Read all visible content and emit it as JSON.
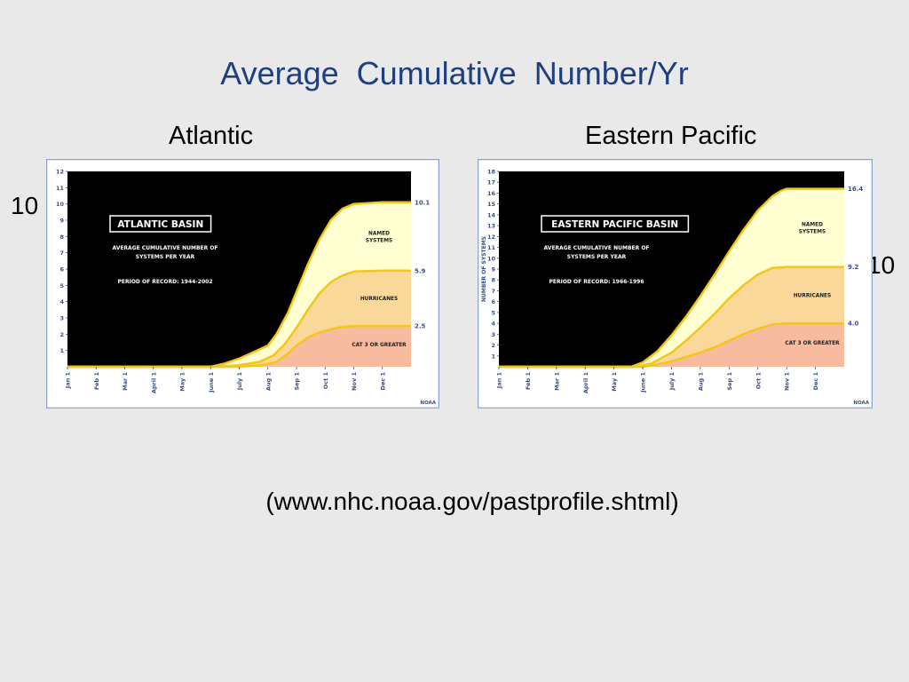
{
  "title": "Average Cumulative Number/Yr",
  "source": "(www.nhc.noaa.gov/pastprofile.shtml)",
  "side_notes": {
    "left": "10",
    "right": "10"
  },
  "colors": {
    "plot_bg": "#000000",
    "frame_bg": "#ffffff",
    "frame_border": "#8aa4d2",
    "axis_text": "#3a4f86",
    "named_fill": "#ffffd2",
    "hurricane_fill": "#fad89a",
    "major_fill": "#f7bca0",
    "curve_stroke": "#f4c61c",
    "panel_text": "#ffffff"
  },
  "chart_data": [
    {
      "type": "area",
      "heading": "Atlantic",
      "panel": {
        "basin_title": "ATLANTIC BASIN",
        "subtitle": [
          "AVERAGE CUMULATIVE NUMBER OF",
          "SYSTEMS PER YEAR"
        ],
        "period": "PERIOD OF RECORD: 1944-2002"
      },
      "ylabel": "",
      "ylim": [
        0,
        12
      ],
      "yticks": [
        "1",
        "2",
        "3",
        "4",
        "5",
        "6",
        "7",
        "8",
        "9",
        "10",
        "11",
        "12"
      ],
      "xlim": [
        0,
        12
      ],
      "month_labels": [
        "Jan 1",
        "Feb 1",
        "Mar 1",
        "April 1",
        "May 1",
        "June 1",
        "July 1",
        "Aug 1",
        "Sep 1",
        "Oct 1",
        "Nov 1",
        "Dec 1"
      ],
      "credit": "NOAA",
      "series": [
        {
          "name": "NAMED SYSTEMS",
          "name_lines": [
            "NAMED",
            "SYSTEMS"
          ],
          "end_label": "10.1",
          "x": [
            0,
            5.0,
            5.5,
            6.0,
            6.5,
            7.0,
            7.3,
            7.7,
            8.0,
            8.4,
            8.8,
            9.2,
            9.6,
            10.0,
            11.0,
            12.0
          ],
          "y": [
            0,
            0,
            0.2,
            0.5,
            0.9,
            1.3,
            2.0,
            3.3,
            4.6,
            6.3,
            7.8,
            9.0,
            9.7,
            10.0,
            10.1,
            10.1
          ]
        },
        {
          "name": "HURRICANES",
          "name_lines": [
            "HURRICANES"
          ],
          "end_label": "5.9",
          "x": [
            0,
            5.2,
            6.0,
            6.7,
            7.2,
            7.6,
            8.0,
            8.4,
            8.8,
            9.2,
            9.6,
            10.0,
            11.0,
            12.0
          ],
          "y": [
            0,
            0,
            0.1,
            0.3,
            0.7,
            1.4,
            2.4,
            3.5,
            4.5,
            5.2,
            5.6,
            5.85,
            5.9,
            5.9
          ]
        },
        {
          "name": "CAT 3 OR GREATER",
          "name_lines": [
            "CAT 3 OR GREATER"
          ],
          "end_label": "2.5",
          "x": [
            0,
            6.0,
            6.8,
            7.3,
            7.7,
            8.0,
            8.4,
            8.8,
            9.2,
            9.6,
            10.0,
            11.0,
            12.0
          ],
          "y": [
            0,
            0,
            0.1,
            0.3,
            0.8,
            1.3,
            1.8,
            2.1,
            2.3,
            2.45,
            2.5,
            2.5,
            2.5
          ]
        }
      ]
    },
    {
      "type": "area",
      "heading": "Eastern Pacific",
      "panel": {
        "basin_title": "EASTERN PACIFIC BASIN",
        "subtitle": [
          "AVERAGE CUMULATIVE NUMBER OF",
          "SYSTEMS PER YEAR"
        ],
        "period": "PERIOD OF RECORD: 1966-1996"
      },
      "ylabel": "NUMBER OF SYSTEMS",
      "ylim": [
        0,
        18
      ],
      "yticks": [
        "1",
        "2",
        "3",
        "4",
        "5",
        "6",
        "7",
        "8",
        "9",
        "10",
        "11",
        "12",
        "13",
        "14",
        "15",
        "16",
        "17",
        "18"
      ],
      "xlim": [
        0,
        12
      ],
      "month_labels": [
        "Jan 1",
        "Feb 1",
        "Mar 1",
        "April 1",
        "May 1",
        "June 1",
        "July 1",
        "Aug 1",
        "Sep 1",
        "Oct 1",
        "Nov 1",
        "Dec 1"
      ],
      "credit": "NOAA",
      "series": [
        {
          "name": "NAMED SYSTEMS",
          "name_lines": [
            "NAMED",
            "SYSTEMS"
          ],
          "end_label": "16.4",
          "x": [
            0,
            4.6,
            5.0,
            5.5,
            6.0,
            6.5,
            7.0,
            7.5,
            8.0,
            8.5,
            9.0,
            9.5,
            9.8,
            10.0,
            11.0,
            12.0
          ],
          "y": [
            0,
            0,
            0.4,
            1.4,
            2.9,
            4.6,
            6.5,
            8.5,
            10.6,
            12.6,
            14.4,
            15.7,
            16.2,
            16.4,
            16.4,
            16.4
          ]
        },
        {
          "name": "HURRICANES",
          "name_lines": [
            "HURRICANES"
          ],
          "end_label": "9.2",
          "x": [
            0,
            4.8,
            5.3,
            6.0,
            6.5,
            7.0,
            7.5,
            8.0,
            8.5,
            9.0,
            9.5,
            10.0,
            11.0,
            12.0
          ],
          "y": [
            0,
            0,
            0.3,
            1.3,
            2.4,
            3.6,
            4.9,
            6.3,
            7.5,
            8.5,
            9.1,
            9.2,
            9.2,
            9.2
          ]
        },
        {
          "name": "CAT 3 OR GREATER",
          "name_lines": [
            "CAT 3 OR GREATER"
          ],
          "end_label": "4.0",
          "x": [
            0,
            5.0,
            5.5,
            6.0,
            6.5,
            7.0,
            7.5,
            8.0,
            8.5,
            9.0,
            9.5,
            10.0,
            11.0,
            12.0
          ],
          "y": [
            0,
            0,
            0.2,
            0.5,
            0.9,
            1.3,
            1.8,
            2.4,
            3.0,
            3.5,
            3.9,
            4.0,
            4.0,
            4.0
          ]
        }
      ]
    }
  ]
}
